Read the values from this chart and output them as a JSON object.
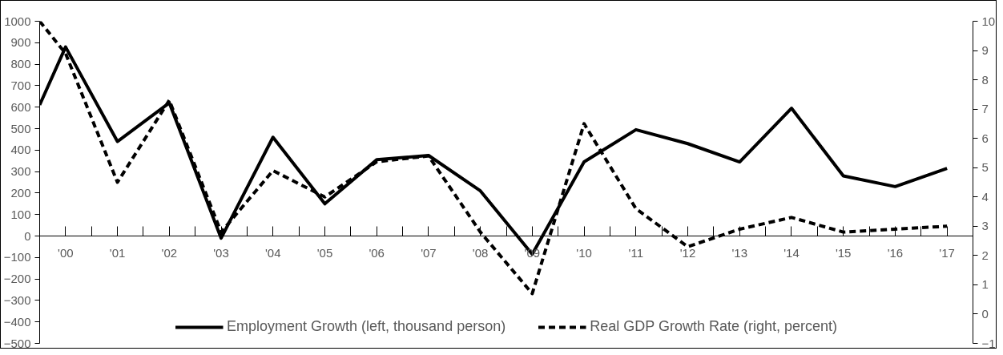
{
  "chart_data": {
    "type": "line",
    "x": [
      -0.5,
      0,
      1,
      2,
      3,
      4,
      5,
      6,
      7,
      8,
      9,
      10,
      11,
      12,
      13,
      14,
      15,
      16,
      17
    ],
    "xlim": [
      -0.5,
      17.5
    ],
    "xticks": [
      {
        "value": 0,
        "label": "'00"
      },
      {
        "value": 1,
        "label": "'01"
      },
      {
        "value": 2,
        "label": "'02"
      },
      {
        "value": 3,
        "label": "'03"
      },
      {
        "value": 4,
        "label": "'04"
      },
      {
        "value": 5,
        "label": "'05"
      },
      {
        "value": 6,
        "label": "'06"
      },
      {
        "value": 7,
        "label": "'07"
      },
      {
        "value": 8,
        "label": "'08"
      },
      {
        "value": 9,
        "label": "'09"
      },
      {
        "value": 10,
        "label": "'10"
      },
      {
        "value": 11,
        "label": "'11"
      },
      {
        "value": 12,
        "label": "'12"
      },
      {
        "value": 13,
        "label": "'13"
      },
      {
        "value": 14,
        "label": "'14"
      },
      {
        "value": 15,
        "label": "'15"
      },
      {
        "value": 16,
        "label": "'16"
      },
      {
        "value": 17,
        "label": "'17"
      },
      {
        "value": 0.5,
        "label": null
      },
      {
        "value": 1.5,
        "label": null
      },
      {
        "value": 2.5,
        "label": null
      },
      {
        "value": 3.5,
        "label": null
      },
      {
        "value": 4.5,
        "label": null
      },
      {
        "value": 5.5,
        "label": null
      },
      {
        "value": 6.5,
        "label": null
      },
      {
        "value": 7.5,
        "label": null
      },
      {
        "value": 8.5,
        "label": null
      },
      {
        "value": 9.5,
        "label": null
      },
      {
        "value": 10.5,
        "label": null
      },
      {
        "value": 11.5,
        "label": null
      },
      {
        "value": 12.5,
        "label": null
      },
      {
        "value": 13.5,
        "label": null
      },
      {
        "value": 14.5,
        "label": null
      },
      {
        "value": 15.5,
        "label": null
      },
      {
        "value": 16.5,
        "label": null
      }
    ],
    "ylim": [
      -500,
      1000
    ],
    "yticks": [
      -500,
      -400,
      -300,
      -200,
      -100,
      0,
      100,
      200,
      300,
      400,
      500,
      600,
      700,
      800,
      900,
      1000
    ],
    "y2lim": [
      -1,
      10
    ],
    "y2ticks": [
      -1,
      0,
      1,
      2,
      3,
      4,
      5,
      6,
      7,
      8,
      9,
      10
    ],
    "series": [
      {
        "name": "Employment Growth (left, thousand person)",
        "color": "#000000",
        "line_style": "solid",
        "values": [
          610,
          880,
          440,
          620,
          -10,
          460,
          150,
          355,
          375,
          210,
          -85,
          345,
          495,
          430,
          345,
          595,
          280,
          230,
          315
        ]
      },
      {
        "name": "Real GDP Growth Rate (right, percent)",
        "color": "#000000",
        "line_style": "dashed",
        "axis": "y2",
        "values": [
          10,
          8.9,
          4.5,
          7.3,
          2.8,
          4.9,
          4.0,
          5.2,
          5.4,
          2.8,
          0.7,
          6.5,
          3.6,
          2.3,
          2.9,
          3.3,
          2.8,
          2.9,
          3.0
        ]
      }
    ],
    "grid": false,
    "legend": "bottom"
  }
}
